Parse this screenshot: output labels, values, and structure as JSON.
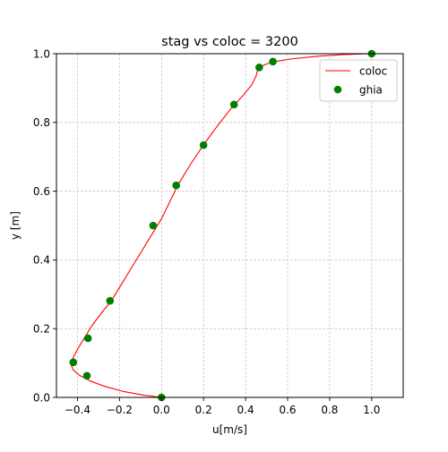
{
  "chart_data": {
    "type": "line",
    "title": "stag vs coloc = 3200",
    "xlabel": "u[m/s]",
    "ylabel": "y [m]",
    "xlim": [
      -0.5,
      1.15
    ],
    "ylim": [
      0.0,
      1.0
    ],
    "xticks": [
      "−0.4",
      "−0.2",
      "0.0",
      "0.2",
      "0.4",
      "0.6",
      "0.8",
      "1.0"
    ],
    "xtick_values": [
      -0.4,
      -0.2,
      0.0,
      0.2,
      0.4,
      0.6,
      0.8,
      1.0
    ],
    "yticks": [
      "0.0",
      "0.2",
      "0.4",
      "0.6",
      "0.8",
      "1.0"
    ],
    "ytick_values": [
      0.0,
      0.2,
      0.4,
      0.6,
      0.8,
      1.0
    ],
    "grid": true,
    "legend_position": "top-right",
    "series": [
      {
        "name": "coloc",
        "kind": "line",
        "color": "#ff0000",
        "points": [
          [
            0.0,
            0.0
          ],
          [
            -0.08,
            0.006
          ],
          [
            -0.18,
            0.017
          ],
          [
            -0.27,
            0.032
          ],
          [
            -0.34,
            0.048
          ],
          [
            -0.39,
            0.064
          ],
          [
            -0.42,
            0.08
          ],
          [
            -0.43,
            0.095
          ],
          [
            -0.425,
            0.11
          ],
          [
            -0.4,
            0.14
          ],
          [
            -0.37,
            0.17
          ],
          [
            -0.33,
            0.21
          ],
          [
            -0.28,
            0.25
          ],
          [
            -0.24,
            0.28
          ],
          [
            -0.19,
            0.33
          ],
          [
            -0.13,
            0.39
          ],
          [
            -0.07,
            0.45
          ],
          [
            -0.04,
            0.48
          ],
          [
            0.0,
            0.52
          ],
          [
            0.04,
            0.57
          ],
          [
            0.08,
            0.62
          ],
          [
            0.14,
            0.68
          ],
          [
            0.2,
            0.735
          ],
          [
            0.26,
            0.785
          ],
          [
            0.33,
            0.84
          ],
          [
            0.39,
            0.88
          ],
          [
            0.43,
            0.91
          ],
          [
            0.45,
            0.935
          ],
          [
            0.46,
            0.96
          ],
          [
            0.5,
            0.97
          ],
          [
            0.54,
            0.977
          ],
          [
            0.62,
            0.985
          ],
          [
            0.75,
            0.993
          ],
          [
            0.88,
            0.998
          ],
          [
            1.0,
            1.0
          ]
        ]
      },
      {
        "name": "ghia",
        "kind": "scatter",
        "color": "#008000",
        "points": [
          [
            1.0,
            1.0
          ],
          [
            0.53,
            0.977
          ],
          [
            0.465,
            0.96
          ],
          [
            0.345,
            0.852
          ],
          [
            0.2,
            0.734
          ],
          [
            0.07,
            0.617
          ],
          [
            -0.04,
            0.5
          ],
          [
            -0.245,
            0.281
          ],
          [
            -0.35,
            0.172
          ],
          [
            -0.42,
            0.102
          ],
          [
            -0.355,
            0.063
          ],
          [
            0.0,
            0.0
          ]
        ]
      }
    ]
  }
}
